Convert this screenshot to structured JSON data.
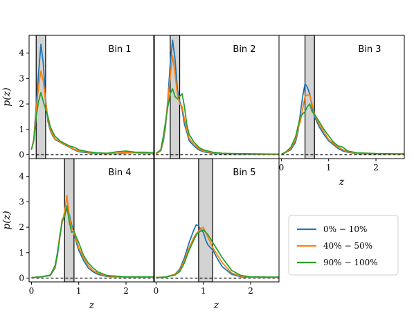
{
  "chart_data": {
    "type": "line",
    "xlabel": "z",
    "ylabel": "p(z)",
    "xlim": [
      -0.05,
      2.6
    ],
    "ylim": [
      -0.15,
      4.7
    ],
    "xticks": [
      0,
      1,
      2
    ],
    "yticks": [
      0,
      1,
      2,
      3,
      4
    ],
    "legend": {
      "placement": "lower-right",
      "entries": [
        "0% − 10%",
        "40% − 50%",
        "90% − 100%"
      ]
    },
    "colors": {
      "s1": "#1f77b4",
      "s2": "#ff7f0e",
      "s3": "#2ca02c",
      "band": "#d3d3d3"
    },
    "panels": [
      {
        "title": "Bin 1",
        "band": [
          0.1,
          0.3
        ],
        "series": [
          {
            "name": "0% − 10%",
            "x": [
              0.0,
              0.05,
              0.1,
              0.15,
              0.2,
              0.25,
              0.3,
              0.35,
              0.4,
              0.45,
              0.5,
              0.55,
              0.6,
              0.7,
              0.8,
              0.9,
              1.0,
              1.2,
              1.4,
              1.6,
              1.8,
              2.0,
              2.2,
              2.4,
              2.6
            ],
            "y": [
              0.2,
              0.6,
              1.9,
              3.2,
              4.35,
              3.6,
              2.2,
              1.3,
              0.95,
              0.75,
              0.6,
              0.55,
              0.5,
              0.4,
              0.3,
              0.2,
              0.12,
              0.08,
              0.05,
              0.05,
              0.05,
              0.08,
              0.08,
              0.06,
              0.05
            ]
          },
          {
            "name": "40% − 50%",
            "x": [
              0.0,
              0.05,
              0.1,
              0.15,
              0.2,
              0.25,
              0.3,
              0.35,
              0.4,
              0.45,
              0.5,
              0.55,
              0.6,
              0.7,
              0.8,
              0.9,
              1.0,
              1.2,
              1.4,
              1.6,
              1.8,
              2.0,
              2.2,
              2.4,
              2.6
            ],
            "y": [
              0.2,
              0.6,
              1.7,
              2.7,
              3.3,
              2.9,
              2.1,
              1.4,
              1.0,
              0.8,
              0.62,
              0.58,
              0.52,
              0.42,
              0.32,
              0.22,
              0.15,
              0.1,
              0.06,
              0.05,
              0.06,
              0.1,
              0.08,
              0.06,
              0.05
            ]
          },
          {
            "name": "90% − 100%",
            "x": [
              0.0,
              0.05,
              0.1,
              0.15,
              0.2,
              0.25,
              0.3,
              0.35,
              0.4,
              0.45,
              0.5,
              0.55,
              0.6,
              0.7,
              0.8,
              0.9,
              1.0,
              1.2,
              1.4,
              1.6,
              1.8,
              2.0,
              2.2,
              2.4,
              2.6
            ],
            "y": [
              0.2,
              0.55,
              1.5,
              2.1,
              2.45,
              2.1,
              1.8,
              1.5,
              1.1,
              0.9,
              0.72,
              0.65,
              0.55,
              0.45,
              0.35,
              0.3,
              0.2,
              0.12,
              0.08,
              0.06,
              0.12,
              0.15,
              0.1,
              0.1,
              0.08
            ]
          }
        ]
      },
      {
        "title": "Bin 2",
        "band": [
          0.3,
          0.5
        ],
        "series": [
          {
            "name": "0% − 10%",
            "x": [
              0.0,
              0.1,
              0.15,
              0.2,
              0.25,
              0.3,
              0.35,
              0.4,
              0.45,
              0.5,
              0.55,
              0.6,
              0.65,
              0.7,
              0.8,
              0.9,
              1.0,
              1.2,
              1.4,
              1.6,
              2.0,
              2.4,
              2.6
            ],
            "y": [
              0.05,
              0.15,
              0.5,
              1.1,
              2.2,
              3.6,
              4.5,
              3.8,
              2.6,
              2.1,
              1.8,
              1.2,
              0.9,
              0.55,
              0.35,
              0.2,
              0.12,
              0.06,
              0.04,
              0.03,
              0.02,
              0.02,
              0.02
            ]
          },
          {
            "name": "40% − 50%",
            "x": [
              0.0,
              0.1,
              0.15,
              0.2,
              0.25,
              0.3,
              0.35,
              0.4,
              0.45,
              0.5,
              0.55,
              0.6,
              0.65,
              0.7,
              0.8,
              0.9,
              1.0,
              1.2,
              1.4,
              1.6,
              2.0,
              2.4,
              2.6
            ],
            "y": [
              0.05,
              0.15,
              0.6,
              1.2,
              2.1,
              3.1,
              3.9,
              3.2,
              2.4,
              2.0,
              1.9,
              1.4,
              1.0,
              0.65,
              0.4,
              0.25,
              0.15,
              0.08,
              0.05,
              0.04,
              0.03,
              0.02,
              0.02
            ]
          },
          {
            "name": "90% − 100%",
            "x": [
              0.0,
              0.1,
              0.15,
              0.2,
              0.25,
              0.3,
              0.35,
              0.4,
              0.45,
              0.5,
              0.55,
              0.6,
              0.65,
              0.7,
              0.8,
              0.9,
              1.0,
              1.2,
              1.4,
              1.6,
              2.0,
              2.4,
              2.6
            ],
            "y": [
              0.05,
              0.2,
              0.7,
              1.3,
              1.9,
              2.4,
              2.6,
              2.3,
              2.2,
              2.3,
              2.4,
              1.9,
              1.2,
              0.8,
              0.5,
              0.3,
              0.2,
              0.1,
              0.06,
              0.05,
              0.04,
              0.03,
              0.03
            ]
          }
        ]
      },
      {
        "title": "Bin 3",
        "band": [
          0.5,
          0.7
        ],
        "series": [
          {
            "name": "0% − 10%",
            "x": [
              0.0,
              0.1,
              0.2,
              0.3,
              0.35,
              0.4,
              0.45,
              0.5,
              0.55,
              0.6,
              0.65,
              0.7,
              0.8,
              0.9,
              1.0,
              1.1,
              1.2,
              1.3,
              1.4,
              1.6,
              2.0,
              2.4,
              2.6
            ],
            "y": [
              0.02,
              0.1,
              0.2,
              0.5,
              0.9,
              1.6,
              2.3,
              2.8,
              2.65,
              2.4,
              1.9,
              1.5,
              1.1,
              0.8,
              0.55,
              0.4,
              0.25,
              0.15,
              0.1,
              0.05,
              0.03,
              0.03,
              0.03
            ]
          },
          {
            "name": "40% − 50%",
            "x": [
              0.0,
              0.1,
              0.2,
              0.3,
              0.35,
              0.4,
              0.45,
              0.5,
              0.55,
              0.6,
              0.65,
              0.7,
              0.8,
              0.9,
              1.0,
              1.1,
              1.2,
              1.3,
              1.4,
              1.6,
              2.0,
              2.4,
              2.6
            ],
            "y": [
              0.02,
              0.1,
              0.25,
              0.6,
              1.0,
              1.3,
              1.8,
              2.3,
              2.35,
              2.35,
              2.0,
              1.6,
              1.2,
              0.9,
              0.6,
              0.45,
              0.3,
              0.2,
              0.12,
              0.06,
              0.04,
              0.03,
              0.03
            ]
          },
          {
            "name": "90% − 100%",
            "x": [
              0.0,
              0.1,
              0.2,
              0.3,
              0.35,
              0.4,
              0.45,
              0.5,
              0.55,
              0.6,
              0.65,
              0.7,
              0.8,
              0.9,
              1.0,
              1.1,
              1.2,
              1.3,
              1.4,
              1.6,
              2.0,
              2.4,
              2.6
            ],
            "y": [
              0.02,
              0.12,
              0.3,
              0.7,
              1.1,
              1.5,
              1.6,
              1.7,
              1.9,
              2.0,
              1.7,
              1.6,
              1.3,
              1.0,
              0.75,
              0.5,
              0.35,
              0.3,
              0.15,
              0.08,
              0.05,
              0.04,
              0.04
            ]
          }
        ]
      },
      {
        "title": "Bin 4",
        "band": [
          0.7,
          0.9
        ],
        "series": [
          {
            "name": "0% − 10%",
            "x": [
              0.0,
              0.2,
              0.4,
              0.5,
              0.55,
              0.6,
              0.65,
              0.7,
              0.75,
              0.8,
              0.85,
              0.9,
              0.95,
              1.0,
              1.1,
              1.2,
              1.3,
              1.4,
              1.6,
              2.0,
              2.4,
              2.6
            ],
            "y": [
              0.02,
              0.05,
              0.1,
              0.4,
              0.9,
              1.6,
              2.2,
              2.5,
              2.7,
              2.5,
              2.1,
              1.8,
              1.4,
              1.1,
              0.7,
              0.4,
              0.25,
              0.15,
              0.06,
              0.04,
              0.04,
              0.04
            ]
          },
          {
            "name": "40% − 50%",
            "x": [
              0.0,
              0.2,
              0.4,
              0.5,
              0.55,
              0.6,
              0.65,
              0.7,
              0.75,
              0.8,
              0.85,
              0.9,
              0.95,
              1.0,
              1.1,
              1.2,
              1.3,
              1.4,
              1.6,
              2.0,
              2.4,
              2.6
            ],
            "y": [
              0.02,
              0.05,
              0.12,
              0.45,
              1.0,
              1.7,
              2.2,
              2.6,
              3.25,
              2.4,
              2.0,
              1.8,
              1.5,
              1.2,
              0.8,
              0.5,
              0.3,
              0.2,
              0.08,
              0.04,
              0.04,
              0.04
            ]
          },
          {
            "name": "90% − 100%",
            "x": [
              0.0,
              0.2,
              0.4,
              0.5,
              0.55,
              0.6,
              0.65,
              0.7,
              0.75,
              0.8,
              0.85,
              0.9,
              0.95,
              1.0,
              1.1,
              1.2,
              1.3,
              1.4,
              1.6,
              2.0,
              2.4,
              2.6
            ],
            "y": [
              0.02,
              0.05,
              0.12,
              0.5,
              1.0,
              1.6,
              2.3,
              2.4,
              2.85,
              2.2,
              1.8,
              1.85,
              1.6,
              1.4,
              0.9,
              0.6,
              0.4,
              0.25,
              0.1,
              0.05,
              0.05,
              0.05
            ]
          }
        ]
      },
      {
        "title": "Bin 5",
        "band": [
          0.9,
          1.2
        ],
        "series": [
          {
            "name": "0% − 10%",
            "x": [
              0.0,
              0.2,
              0.4,
              0.5,
              0.6,
              0.7,
              0.8,
              0.85,
              0.9,
              0.95,
              1.0,
              1.05,
              1.1,
              1.15,
              1.2,
              1.3,
              1.4,
              1.5,
              1.6,
              1.8,
              2.0,
              2.4,
              2.6
            ],
            "y": [
              0.02,
              0.04,
              0.15,
              0.35,
              0.8,
              1.4,
              1.9,
              2.1,
              2.05,
              1.9,
              1.8,
              1.5,
              1.3,
              1.2,
              1.1,
              0.75,
              0.45,
              0.3,
              0.15,
              0.05,
              0.03,
              0.03,
              0.03
            ]
          },
          {
            "name": "40% − 50%",
            "x": [
              0.0,
              0.2,
              0.4,
              0.5,
              0.6,
              0.7,
              0.8,
              0.85,
              0.9,
              0.95,
              1.0,
              1.05,
              1.1,
              1.15,
              1.2,
              1.3,
              1.4,
              1.5,
              1.6,
              1.8,
              2.0,
              2.4,
              2.6
            ],
            "y": [
              0.02,
              0.04,
              0.15,
              0.3,
              0.7,
              1.2,
              1.6,
              1.75,
              1.85,
              1.95,
              2.0,
              1.8,
              1.6,
              1.4,
              1.2,
              0.9,
              0.6,
              0.4,
              0.2,
              0.07,
              0.03,
              0.03,
              0.03
            ]
          },
          {
            "name": "90% − 100%",
            "x": [
              0.0,
              0.2,
              0.4,
              0.5,
              0.6,
              0.7,
              0.8,
              0.85,
              0.9,
              0.95,
              1.0,
              1.05,
              1.1,
              1.15,
              1.2,
              1.3,
              1.4,
              1.5,
              1.6,
              1.8,
              2.0,
              2.4,
              2.6
            ],
            "y": [
              0.02,
              0.04,
              0.12,
              0.25,
              0.6,
              1.1,
              1.5,
              1.7,
              1.8,
              1.85,
              1.9,
              1.8,
              1.7,
              1.55,
              1.4,
              1.1,
              0.8,
              0.55,
              0.3,
              0.1,
              0.05,
              0.04,
              0.04
            ]
          }
        ]
      }
    ]
  }
}
